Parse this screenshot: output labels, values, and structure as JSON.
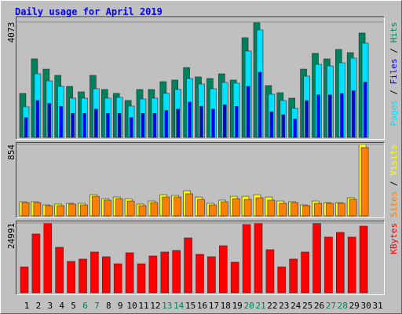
{
  "chart_data": [
    {
      "type": "bar",
      "title": "Daily usage for April 2019",
      "ylim": [
        0,
        4073
      ],
      "yticks": [
        4073
      ],
      "legend_separator": " / ",
      "series": [
        {
          "name": "Hits",
          "color": "#00805c",
          "values": [
            1552,
            2771,
            2410,
            2189,
            1801,
            1607,
            2189,
            1690,
            1552,
            1302,
            1690,
            1690,
            1967,
            2023,
            2466,
            2134,
            2078,
            2244,
            2023,
            3519,
            4073,
            1829,
            1579,
            1385,
            2410,
            2965,
            2771,
            3104,
            2993,
            3685,
            0
          ]
        },
        {
          "name": "Files",
          "color": "#0000ff",
          "values": [
            700,
            1300,
            1200,
            1100,
            850,
            850,
            1000,
            850,
            850,
            700,
            850,
            850,
            950,
            1000,
            1250,
            1100,
            1000,
            1150,
            1100,
            1800,
            2300,
            900,
            800,
            650,
            1300,
            1500,
            1500,
            1550,
            1650,
            1950,
            0
          ]
        },
        {
          "name": "Pages",
          "color": "#00e0ff",
          "values": [
            1081,
            2244,
            1995,
            1801,
            1385,
            1385,
            1718,
            1385,
            1413,
            1108,
            1358,
            1385,
            1552,
            1690,
            2078,
            1884,
            1718,
            1940,
            1912,
            3048,
            3796,
            1524,
            1302,
            1025,
            2161,
            2577,
            2521,
            2632,
            2798,
            3325,
            0
          ]
        }
      ]
    },
    {
      "type": "bar",
      "ylim": [
        0,
        854
      ],
      "yticks": [
        854
      ],
      "legend_separator": " / ",
      "series": [
        {
          "name": "Visits",
          "color": "#ffff00",
          "values": [
            169,
            169,
            131,
            141,
            150,
            150,
            253,
            206,
            225,
            206,
            141,
            178,
            253,
            244,
            300,
            225,
            150,
            188,
            234,
            234,
            253,
            225,
            178,
            169,
            131,
            178,
            159,
            159,
            216,
            854,
            0
          ]
        },
        {
          "name": "Sites",
          "color": "#ff8000",
          "values": [
            159,
            159,
            122,
            122,
            141,
            131,
            234,
            188,
            206,
            178,
            122,
            159,
            225,
            225,
            263,
            197,
            131,
            169,
            206,
            197,
            216,
            188,
            150,
            159,
            122,
            150,
            150,
            150,
            197,
            816,
            0
          ]
        }
      ]
    },
    {
      "type": "bar",
      "ylim": [
        0,
        24991
      ],
      "yticks": [
        24991
      ],
      "categories": [
        "1",
        "2",
        "3",
        "4",
        "5",
        "6",
        "7",
        "8",
        "9",
        "10",
        "11",
        "12",
        "13",
        "14",
        "15",
        "16",
        "17",
        "18",
        "19",
        "20",
        "21",
        "22",
        "23",
        "24",
        "25",
        "26",
        "27",
        "28",
        "29",
        "30",
        "31"
      ],
      "category_colors": [
        "#000000",
        "#000000",
        "#000000",
        "#000000",
        "#000000",
        "#00805c",
        "#00805c",
        "#000000",
        "#000000",
        "#000000",
        "#000000",
        "#000000",
        "#00805c",
        "#00805c",
        "#000000",
        "#000000",
        "#000000",
        "#000000",
        "#000000",
        "#00805c",
        "#00805c",
        "#000000",
        "#000000",
        "#000000",
        "#000000",
        "#000000",
        "#00805c",
        "#00805c",
        "#000000",
        "#000000",
        "#000000"
      ],
      "series": [
        {
          "name": "KBytes",
          "color": "#ff0000",
          "values": [
            9267,
            21060,
            24991,
            16287,
            11232,
            12075,
            14602,
            12917,
            10390,
            14321,
            10390,
            13198,
            14602,
            15164,
            19656,
            13760,
            12917,
            16848,
            10951,
            24430,
            24991,
            15444,
            9267,
            12075,
            14602,
            24800,
            19937,
            21621,
            19937,
            23868,
            0
          ]
        }
      ]
    }
  ]
}
